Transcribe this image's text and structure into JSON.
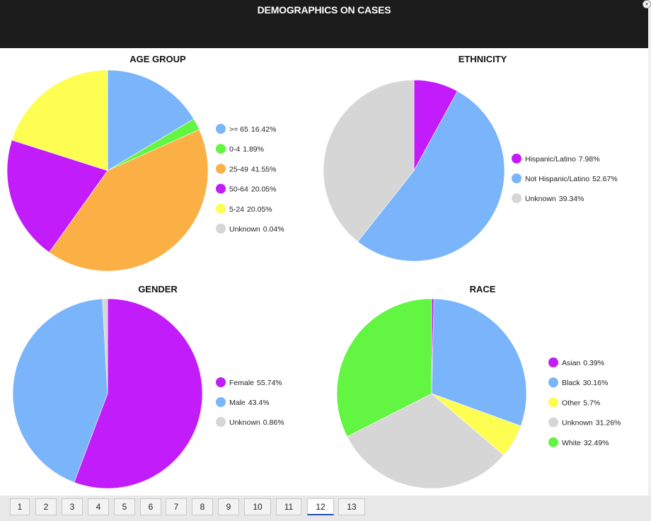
{
  "header": {
    "title": "DEMOGRAPHICS ON CASES",
    "close_icon": "×"
  },
  "chart_data": [
    {
      "type": "pie",
      "title": "AGE GROUP",
      "slices": [
        {
          "label": ">= 65",
          "value": 16.42,
          "display": "16.42%",
          "color": "#7ab4fa"
        },
        {
          "label": "0-4",
          "value": 1.89,
          "display": "1.89%",
          "color": "#62f542"
        },
        {
          "label": "25-49",
          "value": 41.55,
          "display": "41.55%",
          "color": "#fbb046"
        },
        {
          "label": "50-64",
          "value": 20.05,
          "display": "20.05%",
          "color": "#c21cfa"
        },
        {
          "label": "5-24",
          "value": 20.05,
          "display": "20.05%",
          "color": "#fdfd52"
        },
        {
          "label": "Unknown",
          "value": 0.04,
          "display": "0.04%",
          "color": "#d6d6d6"
        }
      ]
    },
    {
      "type": "pie",
      "title": "ETHNICITY",
      "slices": [
        {
          "label": "Hispanic/Latino",
          "value": 7.98,
          "display": "7.98%",
          "color": "#c21cfa"
        },
        {
          "label": "Not Hispanic/Latino",
          "value": 52.67,
          "display": "52.67%",
          "color": "#7ab4fa"
        },
        {
          "label": "Unknown",
          "value": 39.34,
          "display": "39.34%",
          "color": "#d6d6d6"
        }
      ]
    },
    {
      "type": "pie",
      "title": "GENDER",
      "slices": [
        {
          "label": "Female",
          "value": 55.74,
          "display": "55.74%",
          "color": "#c21cfa"
        },
        {
          "label": "Male",
          "value": 43.4,
          "display": "43.4%",
          "color": "#7ab4fa"
        },
        {
          "label": "Unknown",
          "value": 0.86,
          "display": "0.86%",
          "color": "#d6d6d6"
        }
      ]
    },
    {
      "type": "pie",
      "title": "RACE",
      "slices": [
        {
          "label": "Asian",
          "value": 0.39,
          "display": "0.39%",
          "color": "#c21cfa"
        },
        {
          "label": "Black",
          "value": 30.16,
          "display": "30.16%",
          "color": "#7ab4fa"
        },
        {
          "label": "Other",
          "value": 5.7,
          "display": "5.7%",
          "color": "#fdfd52"
        },
        {
          "label": "Unknown",
          "value": 31.26,
          "display": "31.26%",
          "color": "#d6d6d6"
        },
        {
          "label": "White",
          "value": 32.49,
          "display": "32.49%",
          "color": "#62f542"
        }
      ]
    }
  ],
  "pager": {
    "pages": [
      "1",
      "2",
      "3",
      "4",
      "5",
      "6",
      "7",
      "8",
      "9",
      "10",
      "11",
      "12",
      "13"
    ],
    "active": "12"
  }
}
